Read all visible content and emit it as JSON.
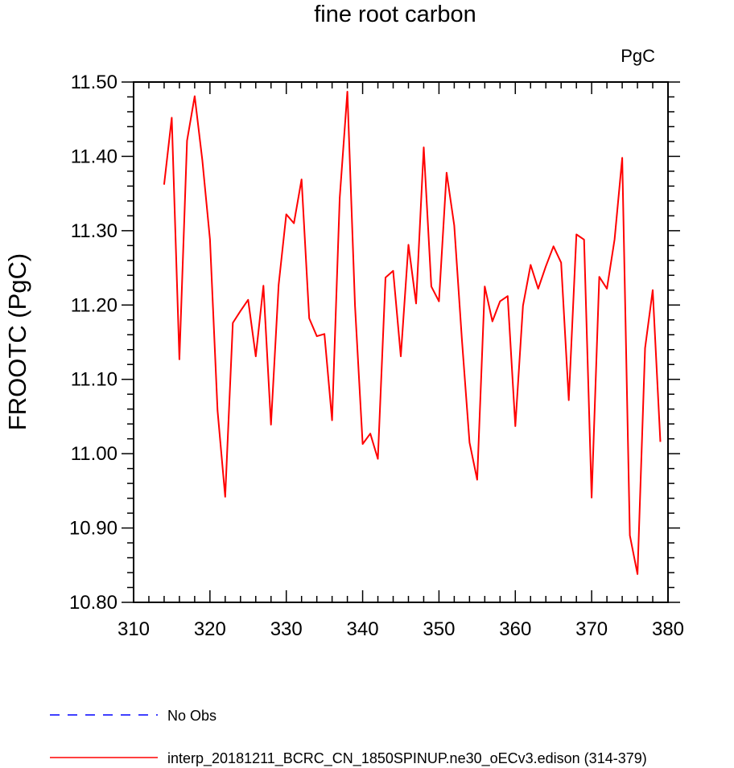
{
  "chart_data": {
    "type": "line",
    "title": "fine root carbon",
    "units": "PgC",
    "ylabel": "FROOTC  (PgC)",
    "xlabel": "",
    "xlim": [
      310,
      380
    ],
    "ylim": [
      10.8,
      11.5
    ],
    "xticks": [
      310,
      320,
      330,
      340,
      350,
      360,
      370,
      380
    ],
    "yticks": [
      "10.80",
      "10.90",
      "11.00",
      "11.10",
      "11.20",
      "11.30",
      "11.40",
      "11.50"
    ],
    "grid": false,
    "legend": [
      {
        "label": "No Obs",
        "color": "#0000ff",
        "style": "dashed"
      },
      {
        "label": "interp_20181211_BCRC_CN_1850SPINUP.ne30_oECv3.edison (314-379)",
        "color": "#ff0000",
        "style": "solid"
      }
    ],
    "series": [
      {
        "color": "#ff0000",
        "x": [
          314,
          315,
          316,
          317,
          318,
          319,
          320,
          321,
          322,
          323,
          324,
          325,
          326,
          327,
          328,
          329,
          330,
          331,
          332,
          333,
          334,
          335,
          336,
          337,
          338,
          339,
          340,
          341,
          342,
          343,
          344,
          345,
          346,
          347,
          348,
          349,
          350,
          351,
          352,
          353,
          354,
          355,
          356,
          357,
          358,
          359,
          360,
          361,
          362,
          363,
          364,
          365,
          366,
          367,
          368,
          369,
          370,
          371,
          372,
          373,
          374,
          375,
          376,
          377,
          378,
          379
        ],
        "y": [
          11.362,
          11.452,
          11.127,
          11.421,
          11.481,
          11.395,
          11.288,
          11.058,
          10.942,
          11.176,
          11.192,
          11.207,
          11.131,
          11.226,
          11.039,
          11.227,
          11.322,
          11.31,
          11.369,
          11.182,
          11.158,
          11.161,
          11.045,
          11.344,
          11.487,
          11.199,
          11.013,
          11.027,
          10.993,
          11.237,
          11.246,
          11.131,
          11.281,
          11.202,
          11.412,
          11.225,
          11.205,
          11.378,
          11.307,
          11.154,
          11.015,
          10.965,
          11.225,
          11.178,
          11.205,
          11.212,
          11.037,
          11.199,
          11.254,
          11.222,
          11.252,
          11.279,
          11.257,
          11.072,
          11.295,
          11.288,
          10.941,
          11.238,
          11.222,
          11.288,
          11.398,
          10.89,
          10.838,
          11.142,
          11.22,
          11.016
        ]
      }
    ]
  }
}
